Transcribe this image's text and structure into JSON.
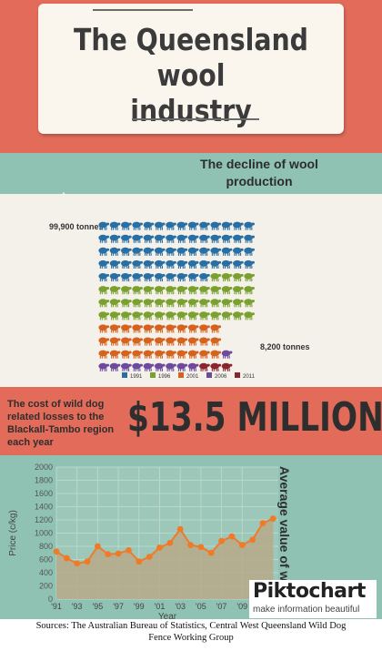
{
  "title": {
    "line1": "The Queensland wool",
    "line2": "industry"
  },
  "decline": {
    "title_line1": "The decline of wool",
    "title_line2": "production"
  },
  "pictogram": {
    "top_label": "99,900 tonnes",
    "bottom_label": "8,200 tonnes",
    "legend": [
      {
        "label": "1991",
        "color": "#2a6fa3"
      },
      {
        "label": "1996",
        "color": "#7aa02f"
      },
      {
        "label": "2001",
        "color": "#d6621f"
      },
      {
        "label": "2006",
        "color": "#6e4a9e"
      },
      {
        "label": "2011",
        "color": "#8a2530"
      }
    ],
    "rows": [
      {
        "count": 14,
        "color": "#2a6fa3"
      },
      {
        "count": 14,
        "color": "#2a6fa3"
      },
      {
        "count": 14,
        "color": "#2a6fa3"
      },
      {
        "count": 14,
        "color": "#2a6fa3"
      },
      {
        "count": 10,
        "color": "#2a6fa3",
        "rest": 4,
        "rest_color": "#7aa02f"
      },
      {
        "count": 14,
        "color": "#7aa02f"
      },
      {
        "count": 14,
        "color": "#7aa02f"
      },
      {
        "count": 14,
        "color": "#7aa02f"
      },
      {
        "count": 11,
        "color": "#d6621f"
      },
      {
        "count": 11,
        "color": "#d6621f"
      },
      {
        "count": 11,
        "color": "#d6621f",
        "rest": 1,
        "rest_color": "#6e4a9e"
      },
      {
        "count": 9,
        "color": "#6e4a9e",
        "rest": 3,
        "rest_color": "#8a2530"
      }
    ]
  },
  "cost": {
    "text": "The cost of wild dog related losses to the Blackall-Tambo region each year",
    "value": "$13.5 MILLION"
  },
  "chart_data": {
    "type": "line",
    "side_title": "Average value of wool",
    "xlabel": "Year",
    "ylabel": "Price (c/kg)",
    "x": [
      1991,
      1992,
      1993,
      1994,
      1995,
      1996,
      1997,
      1998,
      1999,
      2000,
      2001,
      2002,
      2003,
      2004,
      2005,
      2006,
      2007,
      2008,
      2009,
      2010,
      2011
    ],
    "values": [
      720,
      620,
      540,
      570,
      800,
      680,
      690,
      740,
      570,
      640,
      780,
      850,
      1060,
      820,
      790,
      700,
      880,
      950,
      820,
      900,
      1150
    ],
    "extra_point": {
      "x": 2012,
      "y": 1220
    },
    "xticks": [
      "'91",
      "'93",
      "'95",
      "'97",
      "'99",
      "'01",
      "'03",
      "'05",
      "'07",
      "'09"
    ],
    "yticks": [
      0,
      200,
      400,
      600,
      800,
      1000,
      1200,
      1400,
      1600,
      1800,
      2000
    ],
    "ylim": [
      0,
      2000
    ],
    "line_color": "#f07a26",
    "fill_color": "#b9a98a",
    "grid": true
  },
  "logo": {
    "name": "Piktochart",
    "tagline": "make information beautiful"
  },
  "sources": {
    "line1": "Sources: The Australian Bureau of Statistics, Central West Queensland Wild Dog",
    "line2": "Fence Working Group"
  }
}
